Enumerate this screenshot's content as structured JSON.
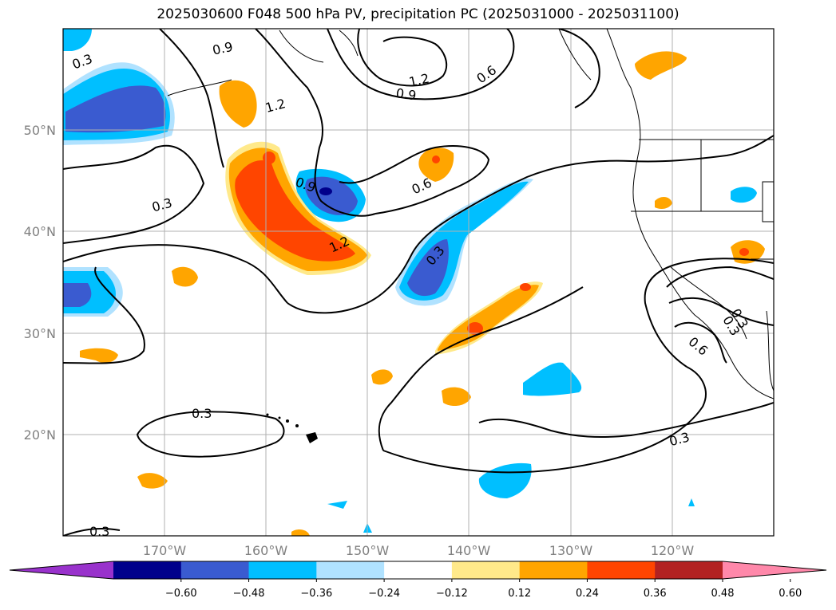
{
  "title": "2025030600 F048 500 hPa PV, precipitation PC (2025031000 - 2025031100)",
  "lon_labels": [
    "170°W",
    "160°W",
    "150°W",
    "140°W",
    "130°W",
    "120°W"
  ],
  "lat_labels": [
    "50°N",
    "40°N",
    "30°N",
    "20°N"
  ],
  "contour_labels": [
    "0.3",
    "0.9",
    "1.2",
    "0.9",
    "1.2",
    "0.6",
    "0.3",
    "0.9",
    "0.6",
    "1.2",
    "0.3",
    "0.3",
    "0.3",
    "0.6",
    "0.3",
    "0.3",
    "0.3"
  ],
  "colorbar": {
    "ticks": [
      "−0.60",
      "−0.48",
      "−0.36",
      "−0.24",
      "−0.12",
      "0.12",
      "0.24",
      "0.36",
      "0.48",
      "0.60"
    ],
    "colors": [
      "#9932CC",
      "#00008B",
      "#3A5BD0",
      "#00BFFF",
      "#B0E2FF",
      "#FFFFFF",
      "#FFE98A",
      "#FFA500",
      "#FF4500",
      "#B22222",
      "#FF88AA"
    ]
  },
  "map": {
    "lon_range": [
      -180,
      -110
    ],
    "lat_range": [
      10,
      60
    ]
  }
}
